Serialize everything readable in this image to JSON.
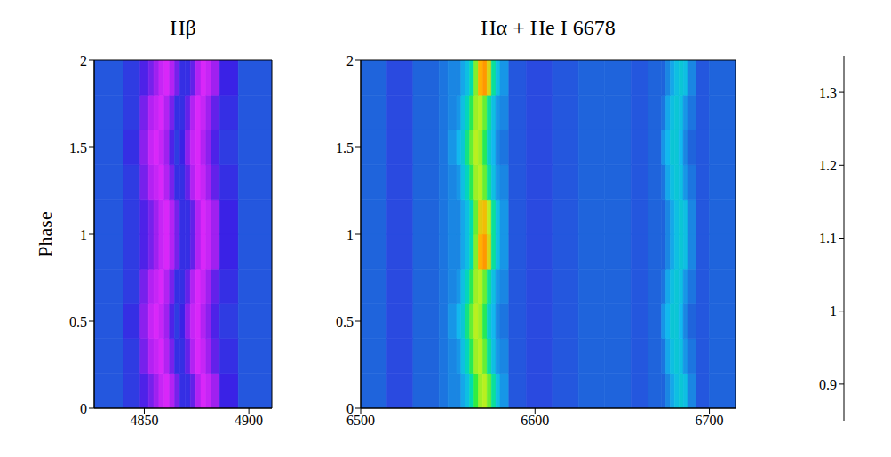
{
  "chart_data": [
    {
      "type": "heatmap",
      "title": "Hβ",
      "y_label": "Phase",
      "x_bins": [
        4826,
        4840,
        4848,
        4852,
        4854.5,
        4857,
        4859.5,
        4862,
        4864.5,
        4867,
        4869.5,
        4872,
        4874.5,
        4877,
        4879.5,
        4882,
        4886,
        4895,
        4911
      ],
      "y_bins": [
        0,
        0.2,
        0.4,
        0.6,
        0.8,
        1,
        1.2,
        1.4,
        1.6,
        1.8,
        2
      ],
      "xlim": [
        4826,
        4911
      ],
      "xticks": [
        4850,
        4900
      ],
      "ylim": [
        0,
        2
      ],
      "yticks": [
        0,
        0.5,
        1,
        1.5,
        2
      ],
      "cells": [
        [
          0.99,
          0.97,
          0.94,
          0.92,
          0.9,
          0.88,
          0.87,
          0.89,
          0.92,
          0.96,
          0.96,
          0.93,
          0.89,
          0.87,
          0.88,
          0.9,
          0.95,
          0.99
        ],
        [
          0.99,
          0.97,
          0.92,
          0.89,
          0.88,
          0.87,
          0.89,
          0.92,
          0.96,
          0.96,
          0.93,
          0.89,
          0.87,
          0.88,
          0.9,
          0.93,
          0.96,
          0.99
        ],
        [
          0.99,
          0.96,
          0.91,
          0.88,
          0.87,
          0.88,
          0.9,
          0.94,
          0.97,
          0.95,
          0.91,
          0.88,
          0.87,
          0.89,
          0.91,
          0.94,
          0.97,
          0.99
        ],
        [
          0.99,
          0.97,
          0.92,
          0.89,
          0.88,
          0.87,
          0.89,
          0.92,
          0.96,
          0.96,
          0.93,
          0.89,
          0.87,
          0.88,
          0.9,
          0.93,
          0.96,
          0.99
        ],
        [
          0.99,
          0.97,
          0.94,
          0.92,
          0.9,
          0.88,
          0.87,
          0.89,
          0.92,
          0.96,
          0.96,
          0.93,
          0.89,
          0.87,
          0.88,
          0.9,
          0.95,
          0.99
        ],
        [
          0.99,
          0.97,
          0.94,
          0.92,
          0.9,
          0.88,
          0.87,
          0.89,
          0.92,
          0.96,
          0.96,
          0.93,
          0.89,
          0.87,
          0.88,
          0.9,
          0.95,
          0.99
        ],
        [
          0.99,
          0.97,
          0.92,
          0.89,
          0.88,
          0.87,
          0.89,
          0.92,
          0.96,
          0.96,
          0.93,
          0.89,
          0.87,
          0.88,
          0.9,
          0.93,
          0.96,
          0.99
        ],
        [
          0.99,
          0.96,
          0.91,
          0.88,
          0.87,
          0.88,
          0.9,
          0.94,
          0.97,
          0.95,
          0.91,
          0.88,
          0.87,
          0.89,
          0.91,
          0.94,
          0.97,
          0.99
        ],
        [
          0.99,
          0.97,
          0.92,
          0.89,
          0.88,
          0.87,
          0.89,
          0.92,
          0.96,
          0.96,
          0.93,
          0.89,
          0.87,
          0.88,
          0.9,
          0.93,
          0.96,
          0.99
        ],
        [
          0.99,
          0.97,
          0.94,
          0.92,
          0.9,
          0.88,
          0.87,
          0.89,
          0.92,
          0.96,
          0.96,
          0.93,
          0.89,
          0.87,
          0.88,
          0.9,
          0.95,
          0.99
        ]
      ]
    },
    {
      "type": "heatmap",
      "title": "Hα + He I 6678",
      "x_bins": [
        6500,
        6515,
        6530,
        6545,
        6550,
        6555,
        6557.5,
        6560,
        6562.5,
        6565,
        6567.5,
        6570,
        6572.5,
        6575,
        6577.5,
        6580,
        6585,
        6595,
        6610,
        6625,
        6640,
        6655,
        6665,
        6672.5,
        6675,
        6677.5,
        6680,
        6682.5,
        6685,
        6687.5,
        6692.5,
        6700,
        6715
      ],
      "y_bins": [
        0,
        0.2,
        0.4,
        0.6,
        0.8,
        1,
        1.2,
        1.4,
        1.6,
        1.8,
        2
      ],
      "xlim": [
        6500,
        6715
      ],
      "xticks": [
        6500,
        6600,
        6700
      ],
      "ylim": [
        0,
        2
      ],
      "yticks": [
        0,
        0.5,
        1,
        1.5,
        2
      ],
      "cells": [
        [
          1.0,
          0.98,
          1.0,
          1.01,
          1.02,
          1.02,
          1.04,
          1.06,
          1.1,
          1.15,
          1.19,
          1.2,
          1.17,
          1.11,
          1.06,
          1.03,
          0.99,
          0.98,
          0.99,
          1.0,
          1.0,
          0.99,
          1.0,
          1.0,
          1.02,
          1.04,
          1.06,
          1.07,
          1.06,
          1.02,
          0.99,
          1.0
        ],
        [
          1.0,
          0.98,
          1.0,
          1.01,
          1.02,
          1.03,
          1.06,
          1.09,
          1.14,
          1.19,
          1.2,
          1.17,
          1.11,
          1.06,
          1.03,
          1.02,
          0.99,
          0.98,
          0.99,
          1.0,
          1.0,
          0.99,
          1.0,
          1.01,
          1.04,
          1.06,
          1.07,
          1.06,
          1.03,
          1.01,
          0.99,
          1.0
        ],
        [
          1.0,
          0.98,
          1.0,
          1.01,
          1.03,
          1.05,
          1.07,
          1.12,
          1.17,
          1.2,
          1.19,
          1.14,
          1.08,
          1.05,
          1.02,
          1.01,
          0.99,
          0.98,
          0.99,
          1.0,
          1.0,
          0.99,
          1.0,
          1.03,
          1.05,
          1.07,
          1.07,
          1.05,
          1.02,
          1.0,
          0.99,
          1.0
        ],
        [
          1.0,
          0.98,
          1.0,
          1.01,
          1.02,
          1.03,
          1.06,
          1.09,
          1.14,
          1.19,
          1.2,
          1.17,
          1.11,
          1.06,
          1.03,
          1.02,
          0.99,
          0.98,
          0.99,
          1.0,
          1.0,
          0.99,
          1.0,
          1.01,
          1.04,
          1.06,
          1.07,
          1.06,
          1.03,
          1.01,
          0.99,
          1.0
        ],
        [
          1.0,
          0.98,
          1.0,
          1.01,
          1.02,
          1.02,
          1.04,
          1.06,
          1.1,
          1.18,
          1.25,
          1.26,
          1.22,
          1.11,
          1.06,
          1.03,
          0.99,
          0.98,
          0.99,
          1.0,
          1.0,
          0.99,
          1.0,
          1.0,
          1.02,
          1.04,
          1.06,
          1.07,
          1.06,
          1.02,
          0.99,
          1.0
        ],
        [
          1.0,
          0.98,
          1.0,
          1.01,
          1.02,
          1.02,
          1.04,
          1.06,
          1.1,
          1.17,
          1.23,
          1.24,
          1.2,
          1.11,
          1.06,
          1.03,
          0.99,
          0.98,
          0.99,
          1.0,
          1.0,
          0.99,
          1.0,
          1.0,
          1.02,
          1.04,
          1.06,
          1.07,
          1.06,
          1.02,
          0.99,
          1.0
        ],
        [
          1.0,
          0.98,
          1.0,
          1.01,
          1.02,
          1.03,
          1.06,
          1.09,
          1.14,
          1.19,
          1.2,
          1.17,
          1.11,
          1.06,
          1.03,
          1.02,
          0.99,
          0.98,
          0.99,
          1.0,
          1.0,
          0.99,
          1.0,
          1.01,
          1.04,
          1.06,
          1.07,
          1.06,
          1.03,
          1.01,
          0.99,
          1.0
        ],
        [
          1.0,
          0.98,
          1.0,
          1.01,
          1.03,
          1.05,
          1.07,
          1.12,
          1.17,
          1.2,
          1.19,
          1.14,
          1.08,
          1.05,
          1.02,
          1.01,
          0.99,
          0.98,
          0.99,
          1.0,
          1.0,
          0.99,
          1.0,
          1.03,
          1.05,
          1.07,
          1.07,
          1.05,
          1.02,
          1.0,
          0.99,
          1.0
        ],
        [
          1.0,
          0.98,
          1.0,
          1.01,
          1.02,
          1.03,
          1.06,
          1.09,
          1.14,
          1.19,
          1.2,
          1.17,
          1.11,
          1.06,
          1.03,
          1.02,
          0.99,
          0.98,
          0.99,
          1.0,
          1.0,
          0.99,
          1.0,
          1.01,
          1.04,
          1.06,
          1.07,
          1.06,
          1.03,
          1.01,
          0.99,
          1.0
        ],
        [
          1.0,
          0.98,
          1.0,
          1.01,
          1.02,
          1.02,
          1.04,
          1.06,
          1.1,
          1.18,
          1.25,
          1.26,
          1.22,
          1.11,
          1.06,
          1.03,
          0.99,
          0.98,
          0.99,
          1.0,
          1.0,
          0.99,
          1.0,
          1.0,
          1.02,
          1.04,
          1.06,
          1.07,
          1.06,
          1.02,
          0.99,
          1.0
        ]
      ],
      "colorbar": {
        "range": [
          0.85,
          1.35
        ],
        "ticks": [
          0.9,
          1,
          1.1,
          1.2,
          1.3
        ]
      }
    }
  ]
}
